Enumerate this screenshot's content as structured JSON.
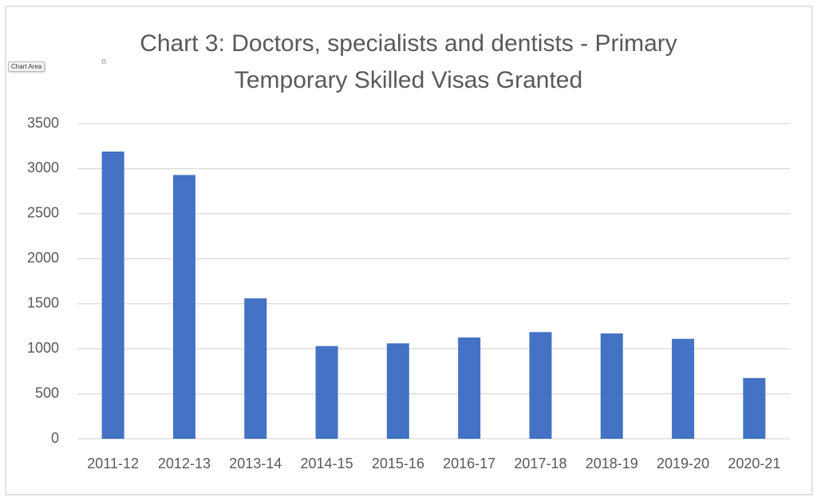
{
  "chart_data": {
    "type": "bar",
    "title": "Chart 3: Doctors, specialists and dentists - Primary Temporary Skilled Visas Granted",
    "annotations": [
      "Chart Area"
    ],
    "categories": [
      "2011-12",
      "2012-13",
      "2013-14",
      "2014-15",
      "2015-16",
      "2016-17",
      "2017-18",
      "2018-19",
      "2019-20",
      "2020-21"
    ],
    "values": [
      3190,
      2930,
      1560,
      1030,
      1060,
      1125,
      1185,
      1170,
      1110,
      675
    ],
    "color": "#4472c4",
    "ylim": [
      0,
      3500
    ],
    "yticks": [
      0,
      500,
      1000,
      1500,
      2000,
      2500,
      3000,
      3500
    ],
    "grid": true
  }
}
